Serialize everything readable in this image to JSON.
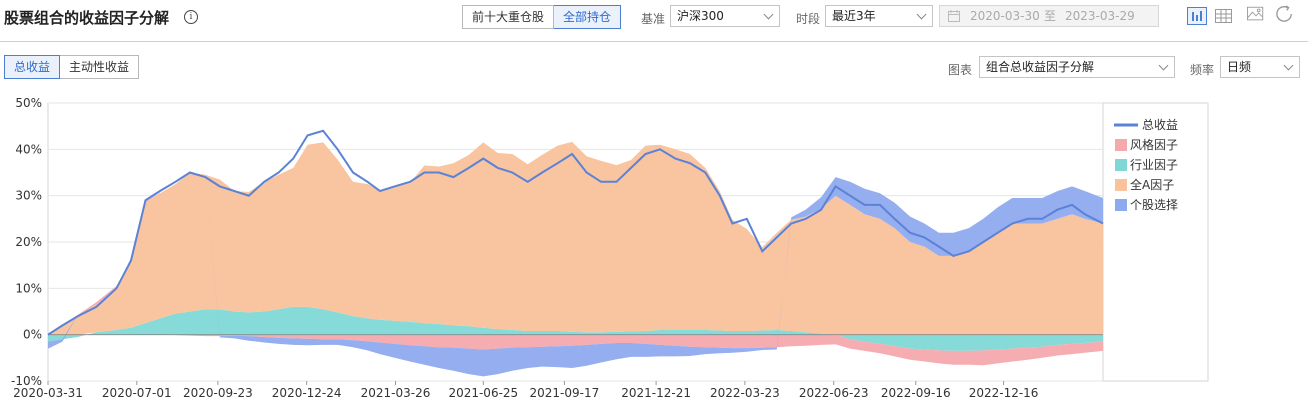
{
  "header": {
    "title": "股票组合的收益因子分解",
    "info_icon": "i",
    "holding_tabs": [
      "前十大重仓股",
      "全部持仓"
    ],
    "holding_active": 1,
    "benchmark_label": "基准",
    "benchmark_value": "沪深300",
    "period_label": "时段",
    "period_value": "最近3年",
    "date_start": "2020-03-30",
    "date_sep": "至",
    "date_end": "2023-03-29",
    "tools": [
      "bar-chart-icon",
      "table-icon",
      "image-download-icon",
      "refresh-icon"
    ]
  },
  "toolbar": {
    "return_tabs": [
      "总收益",
      "主动性收益"
    ],
    "return_active": 0,
    "chart_label": "图表",
    "chart_value": "组合总收益因子分解",
    "freq_label": "频率",
    "freq_value": "日频"
  },
  "colors": {
    "total": "#5b82d6",
    "style": "#f4a9ad",
    "industry": "#7fd8d6",
    "allA": "#f8c29b",
    "stock": "#8eaaef",
    "accent": "#2f6bd0"
  },
  "chart_data": {
    "type": "area",
    "title": "",
    "xlabel": "",
    "ylabel": "",
    "ylim": [
      -10,
      50
    ],
    "ytick_labels": [
      "50%",
      "40%",
      "30%",
      "20%",
      "10%",
      "0%",
      "-10%"
    ],
    "yticks": [
      50,
      40,
      30,
      20,
      10,
      0,
      -10
    ],
    "x_range": [
      "2020-03-31",
      "2023-03-29"
    ],
    "xtick_labels": [
      "2020-03-31",
      "2020-07-01",
      "2020-09-23",
      "2020-12-24",
      "2021-03-26",
      "2021-06-25",
      "2021-09-17",
      "2021-12-21",
      "2022-03-23",
      "2022-06-23",
      "2022-09-16",
      "2022-12-16"
    ],
    "grid": true,
    "legend_position": "right",
    "x": [
      "2020-03-31",
      "2020-04-15",
      "2020-05-01",
      "2020-05-20",
      "2020-06-10",
      "2020-06-25",
      "2020-07-10",
      "2020-07-25",
      "2020-08-10",
      "2020-08-25",
      "2020-09-10",
      "2020-09-25",
      "2020-10-10",
      "2020-10-25",
      "2020-11-10",
      "2020-11-25",
      "2020-12-10",
      "2020-12-25",
      "2021-01-10",
      "2021-01-25",
      "2021-02-10",
      "2021-02-25",
      "2021-03-10",
      "2021-03-25",
      "2021-04-10",
      "2021-04-25",
      "2021-05-10",
      "2021-05-25",
      "2021-06-10",
      "2021-06-25",
      "2021-07-10",
      "2021-07-25",
      "2021-08-10",
      "2021-08-25",
      "2021-09-10",
      "2021-09-25",
      "2021-10-10",
      "2021-10-25",
      "2021-11-10",
      "2021-11-25",
      "2021-12-10",
      "2021-12-25",
      "2022-01-10",
      "2022-01-25",
      "2022-02-10",
      "2022-02-25",
      "2022-03-10",
      "2022-03-25",
      "2022-04-10",
      "2022-04-25",
      "2022-05-10",
      "2022-05-25",
      "2022-06-10",
      "2022-06-25",
      "2022-07-10",
      "2022-07-25",
      "2022-08-10",
      "2022-08-25",
      "2022-09-10",
      "2022-09-25",
      "2022-10-10",
      "2022-10-25",
      "2022-11-10",
      "2022-11-25",
      "2022-12-10",
      "2022-12-25",
      "2023-01-10",
      "2023-01-25",
      "2023-02-10",
      "2023-02-25",
      "2023-03-10",
      "2023-03-29"
    ],
    "series": [
      {
        "name": "总收益",
        "type": "line",
        "values": [
          0,
          2,
          4,
          6,
          10,
          16,
          29,
          31,
          33,
          35,
          34,
          32,
          31,
          30,
          33,
          35,
          38,
          43,
          44,
          40,
          35,
          33,
          31,
          32,
          33,
          35,
          35,
          34,
          36,
          38,
          36,
          35,
          33,
          35,
          37,
          39,
          35,
          33,
          33,
          36,
          39,
          40,
          38,
          37,
          35,
          30,
          24,
          25,
          18,
          21,
          24,
          25,
          27,
          32,
          30,
          28,
          28,
          25,
          22,
          21,
          19,
          17,
          18,
          20,
          22,
          24,
          25,
          25,
          27,
          28,
          26,
          24
        ]
      },
      {
        "name": "风格因子",
        "type": "bar",
        "values": [
          0,
          0,
          0.3,
          0.5,
          0.5,
          0.5,
          0.3,
          0.1,
          -0.1,
          -0.2,
          -0.3,
          -0.3,
          -0.2,
          -0.3,
          -0.5,
          -0.7,
          -0.8,
          -0.9,
          -1.0,
          -1.0,
          -1.2,
          -1.4,
          -1.7,
          -2.0,
          -2.3,
          -2.5,
          -2.7,
          -2.8,
          -3.0,
          -3.2,
          -3.0,
          -2.8,
          -2.7,
          -2.6,
          -2.5,
          -2.4,
          -2.2,
          -2.0,
          -1.8,
          -1.8,
          -2.0,
          -2.2,
          -2.4,
          -2.6,
          -2.7,
          -2.8,
          -2.9,
          -2.9,
          -2.8,
          -2.7,
          -2.5,
          -2.4,
          -2.2,
          -2.1,
          -2.0,
          -2.0,
          -2.0,
          -2.2,
          -2.4,
          -2.6,
          -2.8,
          -3.0,
          -3.0,
          -3.2,
          -3.0,
          -2.8,
          -2.6,
          -2.4,
          -2.3,
          -2.2,
          -2.1,
          -2.0
        ]
      },
      {
        "name": "行业因子",
        "type": "bar",
        "values": [
          -1.5,
          -1.0,
          -0.5,
          0.5,
          1.0,
          1.5,
          2.5,
          3.5,
          4.5,
          5.0,
          5.5,
          5.5,
          5.0,
          4.8,
          5.0,
          5.5,
          6.0,
          6.0,
          5.5,
          4.8,
          4.0,
          3.5,
          3.2,
          3.0,
          2.8,
          2.5,
          2.3,
          2.0,
          1.8,
          1.5,
          1.2,
          1.0,
          0.8,
          0.8,
          0.8,
          0.6,
          0.5,
          0.5,
          0.6,
          0.7,
          0.8,
          1.0,
          1.0,
          1.0,
          1.0,
          0.9,
          0.8,
          0.8,
          0.9,
          1.0,
          0.8,
          0.5,
          0.2,
          0,
          -1.0,
          -1.5,
          -2.0,
          -2.5,
          -3.0,
          -3.2,
          -3.4,
          -3.5,
          -3.5,
          -3.4,
          -3.2,
          -3.0,
          -2.8,
          -2.6,
          -2.2,
          -2.0,
          -1.8,
          -1.5
        ]
      },
      {
        "name": "全A因子",
        "type": "bar",
        "values": [
          0,
          2,
          4,
          6,
          9,
          14,
          26,
          27,
          28,
          30,
          29,
          28,
          26,
          26,
          28,
          29,
          30,
          35,
          36,
          33,
          29,
          29,
          28,
          29,
          30,
          34,
          34,
          35,
          37,
          40,
          38,
          38,
          36,
          38,
          40,
          41,
          38,
          37,
          36,
          37,
          40,
          40,
          39,
          38,
          35,
          30,
          24,
          22,
          18,
          21,
          24,
          25,
          27,
          30,
          28,
          26,
          25,
          23,
          20,
          19,
          17,
          17,
          18,
          20,
          22,
          24,
          24,
          24,
          25,
          26,
          25,
          24
        ]
      },
      {
        "name": "个股选择",
        "type": "bar",
        "values": [
          -1.5,
          -0.5,
          0,
          0,
          0,
          0,
          0,
          0,
          0,
          0,
          0,
          -0.3,
          -0.6,
          -1.0,
          -1.2,
          -1.3,
          -1.4,
          -1.4,
          -1.2,
          -1.2,
          -1.5,
          -2.0,
          -2.5,
          -3.0,
          -3.5,
          -4.0,
          -4.5,
          -5.0,
          -5.5,
          -5.8,
          -5.5,
          -5.0,
          -4.5,
          -4.3,
          -4.5,
          -4.8,
          -4.5,
          -4.0,
          -3.5,
          -3.0,
          -2.8,
          -2.5,
          -2.3,
          -2.0,
          -1.5,
          -1.2,
          -1.0,
          -0.8,
          -0.5,
          -0.5,
          0.5,
          1.5,
          2.5,
          4,
          5,
          5.5,
          5.5,
          5.5,
          5.5,
          5,
          5,
          5,
          5,
          5,
          5.5,
          5.5,
          5.5,
          5.5,
          6,
          6,
          6,
          5.5
        ]
      }
    ]
  }
}
